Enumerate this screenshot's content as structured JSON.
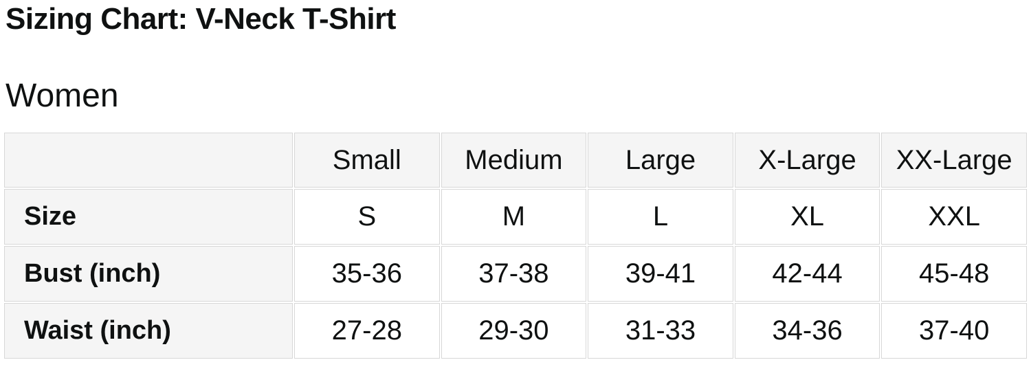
{
  "page": {
    "title": "Sizing Chart: V-Neck T-Shirt",
    "section": "Women"
  },
  "table": {
    "columns": [
      "",
      "Small",
      "Medium",
      "Large",
      "X-Large",
      "XX-Large"
    ],
    "rows": [
      {
        "label": "Size",
        "values": [
          "S",
          "M",
          "L",
          "XL",
          "XXL"
        ]
      },
      {
        "label": "Bust (inch)",
        "values": [
          "35-36",
          "37-38",
          "39-41",
          "42-44",
          "45-48"
        ]
      },
      {
        "label": "Waist (inch)",
        "values": [
          "27-28",
          "29-30",
          "31-33",
          "34-36",
          "37-40"
        ]
      }
    ]
  },
  "colors": {
    "header_bg": "#f5f5f5",
    "border": "#d7d7d7",
    "text": "#0f1111"
  }
}
